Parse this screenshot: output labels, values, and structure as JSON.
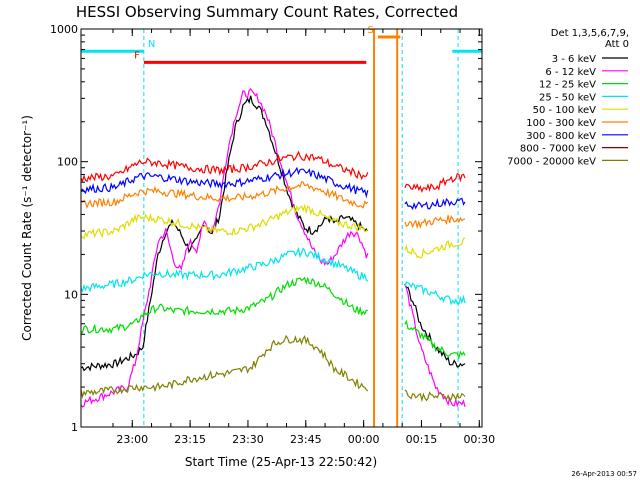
{
  "chart_data": {
    "type": "line",
    "title": "HESSI Observing Summary Count Rates, Corrected",
    "xlabel": "Start Time (25-Apr-13 22:50:42)",
    "ylabel": "Corrected Count Rate (s⁻¹ detector⁻¹)",
    "x_range_minutes": [
      -4,
      100
    ],
    "x_ticks": [
      {
        "m": 9.3,
        "label": "23:00"
      },
      {
        "m": 24.3,
        "label": "23:15"
      },
      {
        "m": 39.3,
        "label": "23:30"
      },
      {
        "m": 54.3,
        "label": "23:45"
      },
      {
        "m": 69.3,
        "label": "00:00"
      },
      {
        "m": 84.3,
        "label": "00:15"
      },
      {
        "m": 99.3,
        "label": "00:30"
      }
    ],
    "yscale": "log",
    "ylim": [
      1,
      1000
    ],
    "y_ticks": [
      {
        "v": 1,
        "label": "1"
      },
      {
        "v": 10,
        "label": "10"
      },
      {
        "v": 100,
        "label": "100"
      },
      {
        "v": 1000,
        "label": "1000"
      }
    ],
    "legend_header": [
      "Det 1,3,5,6,7,9,",
      "Att 0"
    ],
    "legend_position": "right",
    "bars": [
      {
        "label": "N",
        "color": "#00e5ee",
        "segments": [
          [
            -4,
            12.3
          ],
          [
            92.3,
            100
          ]
        ],
        "level": 680
      },
      {
        "label": "F",
        "color": "#ff0000",
        "segments": [
          [
            12.3,
            70
          ]
        ],
        "level": 560
      },
      {
        "label": "S",
        "color": "#ff8000",
        "segments": [
          [
            73,
            78.8
          ]
        ],
        "level": 870
      }
    ],
    "vlines": [
      {
        "m": 12.3,
        "color": "#00e5ee",
        "style": "dashed"
      },
      {
        "m": 72,
        "color": "#ff8000",
        "style": "solid"
      },
      {
        "m": 78,
        "color": "#ff8000",
        "style": "solid"
      },
      {
        "m": 79.3,
        "color": "#00e5ee",
        "style": "dashed"
      },
      {
        "m": 93.8,
        "color": "#00e5ee",
        "style": "dashed"
      }
    ],
    "series": [
      {
        "name": "3 - 6 keV",
        "color": "#000000",
        "x": [
          -4,
          5,
          10,
          12,
          14,
          16,
          18,
          20,
          22,
          24,
          26,
          28,
          30,
          32,
          34,
          36,
          38,
          40,
          42,
          44,
          46,
          48,
          50,
          52,
          54,
          56,
          58,
          60,
          62,
          64,
          66,
          68,
          70,
          80,
          82,
          84,
          88,
          92,
          96
        ],
        "y": [
          2.8,
          3,
          3.5,
          4,
          9,
          20,
          30,
          35,
          28,
          22,
          25,
          35,
          28,
          40,
          90,
          180,
          260,
          300,
          260,
          200,
          130,
          85,
          55,
          40,
          32,
          30,
          33,
          38,
          34,
          38,
          36,
          33,
          30,
          12,
          9,
          6,
          4,
          3,
          3
        ]
      },
      {
        "name": "6 - 12 keV",
        "color": "#ff00ff",
        "x": [
          -4,
          8,
          10,
          12,
          14,
          16,
          18,
          20,
          22,
          24,
          26,
          28,
          30,
          32,
          34,
          36,
          38,
          40,
          42,
          44,
          46,
          48,
          50,
          52,
          54,
          56,
          58,
          60,
          62,
          64,
          66,
          68,
          70,
          80,
          82,
          84,
          88,
          92,
          96
        ],
        "y": [
          1.5,
          2,
          3,
          6,
          12,
          25,
          30,
          18,
          15,
          25,
          22,
          35,
          30,
          50,
          120,
          220,
          320,
          330,
          300,
          230,
          150,
          95,
          60,
          40,
          30,
          22,
          18,
          17,
          20,
          25,
          30,
          28,
          20,
          12,
          7,
          4,
          2,
          1.5,
          1.5
        ]
      },
      {
        "name": "12 - 25 keV",
        "color": "#00dd00",
        "x": [
          -4,
          5,
          10,
          12,
          14,
          16,
          20,
          24,
          28,
          32,
          36,
          40,
          44,
          48,
          50,
          52,
          54,
          56,
          58,
          60,
          62,
          64,
          66,
          68,
          70,
          80,
          84,
          88,
          92,
          96
        ],
        "y": [
          5.5,
          5.5,
          6,
          7,
          7.5,
          8,
          7.5,
          7.5,
          7.5,
          7.5,
          7.5,
          8,
          9,
          11,
          12,
          12.5,
          13,
          12.5,
          12,
          11,
          10,
          9,
          8,
          7.5,
          7.5,
          6,
          5,
          4,
          3.5,
          3.5
        ]
      },
      {
        "name": "25 - 50 keV",
        "color": "#00e5ee",
        "x": [
          -4,
          5,
          10,
          12,
          16,
          20,
          24,
          28,
          32,
          36,
          40,
          44,
          48,
          50,
          52,
          54,
          56,
          58,
          60,
          62,
          64,
          66,
          68,
          70,
          80,
          84,
          88,
          92,
          96
        ],
        "y": [
          11,
          12,
          13,
          14,
          14.5,
          14,
          14,
          14,
          14,
          15,
          16,
          17,
          19,
          20,
          20.5,
          21,
          20,
          19,
          18,
          17,
          16,
          15,
          14,
          13.5,
          12,
          11,
          10,
          9,
          9
        ]
      },
      {
        "name": "50 - 100 keV",
        "color": "#dddd00",
        "x": [
          -4,
          5,
          10,
          12,
          16,
          20,
          24,
          28,
          32,
          36,
          40,
          44,
          48,
          50,
          52,
          54,
          56,
          58,
          60,
          62,
          64,
          66,
          68,
          70,
          80,
          84,
          88,
          92,
          96
        ],
        "y": [
          28,
          30,
          37,
          38,
          37,
          35,
          33,
          31,
          30,
          30,
          32,
          35,
          40,
          42,
          44,
          45,
          43,
          40,
          37,
          35,
          34,
          33,
          32,
          31,
          22,
          20,
          22,
          24,
          25
        ]
      },
      {
        "name": "100 - 300 keV",
        "color": "#ff8000",
        "x": [
          -4,
          5,
          10,
          12,
          16,
          20,
          24,
          28,
          32,
          36,
          40,
          44,
          48,
          50,
          52,
          54,
          56,
          58,
          60,
          62,
          64,
          66,
          68,
          70,
          80,
          84,
          88,
          92,
          96
        ],
        "y": [
          48,
          50,
          58,
          60,
          60,
          58,
          56,
          54,
          53,
          53,
          55,
          58,
          62,
          64,
          66,
          66,
          64,
          62,
          58,
          55,
          52,
          50,
          48,
          47,
          35,
          34,
          36,
          37,
          37
        ]
      },
      {
        "name": "300 - 800 keV",
        "color": "#0000ff",
        "x": [
          -4,
          5,
          10,
          12,
          16,
          20,
          24,
          28,
          32,
          36,
          40,
          44,
          48,
          50,
          52,
          54,
          56,
          58,
          60,
          62,
          64,
          66,
          68,
          70,
          80,
          84,
          88,
          92,
          96
        ],
        "y": [
          62,
          64,
          75,
          78,
          77,
          74,
          71,
          69,
          68,
          69,
          72,
          76,
          80,
          82,
          84,
          83,
          81,
          77,
          73,
          69,
          66,
          63,
          60,
          58,
          48,
          46,
          48,
          50,
          50
        ]
      },
      {
        "name": "800 - 7000 keV",
        "color": "#880000",
        "x": [],
        "y": []
      },
      {
        "name": "7000 - 20000 keV",
        "color": "#808000",
        "x": [
          -4,
          5,
          10,
          12,
          16,
          20,
          24,
          28,
          32,
          36,
          40,
          42,
          44,
          46,
          48,
          50,
          52,
          54,
          56,
          58,
          60,
          62,
          64,
          66,
          68,
          70,
          80,
          84,
          88,
          92,
          96
        ],
        "y": [
          1.8,
          1.9,
          2,
          2,
          2,
          2.1,
          2.3,
          2.4,
          2.5,
          2.6,
          2.8,
          3.2,
          3.8,
          4.2,
          4.5,
          4.6,
          4.6,
          4.5,
          4.2,
          3.8,
          3.2,
          2.7,
          2.5,
          2.3,
          2.1,
          2,
          1.8,
          1.7,
          1.7,
          1.7,
          1.7
        ]
      }
    ],
    "red_series": {
      "name": "",
      "color": "#ff0000",
      "x": [
        -4,
        5,
        10,
        12,
        16,
        20,
        24,
        28,
        32,
        36,
        40,
        44,
        48,
        50,
        52,
        54,
        56,
        58,
        60,
        62,
        64,
        66,
        68,
        70,
        80,
        84,
        88,
        92,
        96
      ],
      "y": [
        75,
        78,
        95,
        100,
        98,
        94,
        90,
        88,
        86,
        88,
        92,
        98,
        105,
        108,
        110,
        110,
        108,
        104,
        98,
        92,
        88,
        84,
        80,
        78,
        65,
        62,
        64,
        75,
        78
      ]
    }
  },
  "timestamp": "26-Apr-2013 00:57"
}
